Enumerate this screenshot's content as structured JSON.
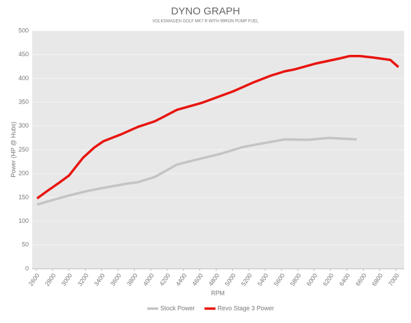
{
  "chart_data": {
    "type": "line",
    "title": "DYNO GRAPH",
    "subtitle": "VOLKSWAGEN GOLF MK7 R WITH 99RON PUMP FUEL",
    "x_label": "RPM",
    "y_label": "Power (HP @ Hubs)",
    "xlim": [
      2550,
      7100
    ],
    "xticks": [
      2600,
      2800,
      3000,
      3200,
      3400,
      3600,
      3800,
      4000,
      4200,
      4400,
      4600,
      4800,
      5000,
      5200,
      5400,
      5600,
      5800,
      6000,
      6200,
      6400,
      6600,
      6800,
      7000
    ],
    "ylim": [
      0,
      500
    ],
    "yticks": [
      0,
      50,
      100,
      150,
      200,
      250,
      300,
      350,
      400,
      450,
      500
    ],
    "grid": true,
    "legend": "bottom",
    "series": [
      {
        "name": "Stock Power",
        "color": "#c4c4c4",
        "x": [
          2610,
          2790,
          3000,
          3210,
          3420,
          3710,
          3840,
          4050,
          4320,
          4550,
          4840,
          5130,
          5380,
          5640,
          5930,
          6180,
          6520
        ],
        "values": [
          135,
          144,
          154,
          163,
          170,
          179,
          182,
          193,
          219,
          229,
          241,
          256,
          264,
          272,
          271,
          275,
          272
        ]
      },
      {
        "name": "Revo Stage 3 Power",
        "color": "#e8140f",
        "x": [
          2610,
          2730,
          2880,
          3000,
          3170,
          3310,
          3420,
          3630,
          3840,
          4050,
          4130,
          4320,
          4630,
          5010,
          5260,
          5470,
          5640,
          5760,
          6010,
          6310,
          6430,
          6560,
          6720,
          6930,
          7030
        ],
        "values": [
          148,
          163,
          181,
          196,
          233,
          255,
          268,
          282,
          298,
          310,
          317,
          334,
          349,
          373,
          392,
          406,
          415,
          419,
          431,
          442,
          447,
          447,
          444,
          439,
          424
        ]
      }
    ]
  }
}
